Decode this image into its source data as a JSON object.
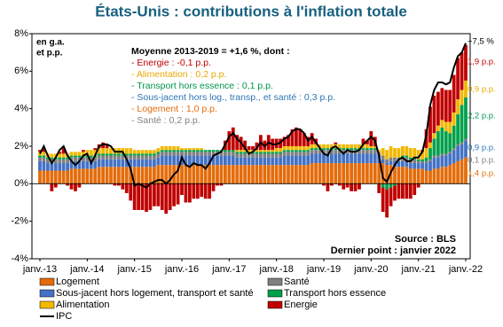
{
  "chart_data": {
    "type": "stacked-bar",
    "title": "États-Unis : contributions à l'inflation totale",
    "unit_note": [
      "en g.a.",
      "et p.p."
    ],
    "average_title": "Moyenne 2013-2019 = +1,6 %, dont :",
    "average_lines": [
      {
        "text": "- Energie : -0,1 p.p.",
        "color": "#c00000"
      },
      {
        "text": "- Alimentation : 0,2 p.p.",
        "color": "#e8a800"
      },
      {
        "text": "- Transport hors essence : 0,1 p.p.",
        "color": "#00964b"
      },
      {
        "text": "- Sous-jacent hors log., transp., et santé : 0,3 p.p.",
        "color": "#2e75b6"
      },
      {
        "text": "- Logement : 1,0 p.p.",
        "color": "#e46c0a"
      },
      {
        "text": "- Santé : 0,2 p.p.",
        "color": "#7f7f7f"
      }
    ],
    "end_labels": [
      {
        "text": "+7,5 %",
        "color": "#000000"
      },
      {
        "text": "1,9 p.p.",
        "color": "#c00000"
      },
      {
        "text": "0,9 p.p.",
        "color": "#e8a800"
      },
      {
        "text": "2,2 p.p.",
        "color": "#00964b"
      },
      {
        "text": "0,9 p.p.",
        "color": "#2e75b6"
      },
      {
        "text": "0,1 p.p.",
        "color": "#7f7f7f"
      },
      {
        "text": "1,4 p.p.",
        "color": "#e46c0a"
      }
    ],
    "source": "Source : BLS",
    "last_point": "Dernier point : janvier 2022",
    "categories": [
      "janv.-13",
      null,
      null,
      null,
      null,
      null,
      null,
      null,
      null,
      null,
      null,
      null,
      "janv.-14",
      null,
      null,
      null,
      null,
      null,
      null,
      null,
      null,
      null,
      null,
      null,
      "janv.-15",
      null,
      null,
      null,
      null,
      null,
      null,
      null,
      null,
      null,
      null,
      null,
      "janv.-16",
      null,
      null,
      null,
      null,
      null,
      null,
      null,
      null,
      null,
      null,
      null,
      "janv.-17",
      null,
      null,
      null,
      null,
      null,
      null,
      null,
      null,
      null,
      null,
      null,
      "janv.-18",
      null,
      null,
      null,
      null,
      null,
      null,
      null,
      null,
      null,
      null,
      null,
      "janv.-19",
      null,
      null,
      null,
      null,
      null,
      null,
      null,
      null,
      null,
      null,
      null,
      "janv.-20",
      null,
      null,
      null,
      null,
      null,
      null,
      null,
      null,
      null,
      null,
      null,
      "janv.-21",
      null,
      null,
      null,
      null,
      null,
      null,
      null,
      null,
      null,
      null,
      null,
      "janv.-22"
    ],
    "ylim": [
      -4,
      8
    ],
    "yticks": [
      {
        "value": -4,
        "label": "-4%"
      },
      {
        "value": -2,
        "label": "-2%"
      },
      {
        "value": 0,
        "label": "0%"
      },
      {
        "value": 2,
        "label": "2%"
      },
      {
        "value": 4,
        "label": "4%"
      },
      {
        "value": 6,
        "label": "6%"
      },
      {
        "value": 8,
        "label": "8%"
      }
    ],
    "series": [
      {
        "name": "Logement",
        "color": "#e46c0a",
        "values": [
          0.7,
          0.7,
          0.7,
          0.7,
          0.7,
          0.7,
          0.7,
          0.7,
          0.8,
          0.8,
          0.8,
          0.8,
          0.8,
          0.8,
          0.8,
          0.9,
          0.9,
          0.9,
          0.9,
          0.9,
          0.9,
          0.9,
          0.9,
          0.9,
          0.9,
          0.9,
          0.9,
          0.9,
          0.9,
          0.9,
          1.0,
          1.0,
          1.0,
          1.0,
          1.0,
          1.0,
          1.0,
          1.0,
          1.0,
          1.0,
          1.0,
          1.0,
          1.0,
          1.0,
          1.0,
          1.0,
          1.0,
          1.0,
          1.0,
          1.0,
          1.0,
          1.0,
          1.0,
          1.0,
          1.0,
          1.0,
          1.0,
          1.0,
          1.0,
          1.0,
          1.0,
          1.0,
          1.0,
          1.0,
          1.0,
          1.0,
          1.0,
          1.0,
          1.0,
          1.1,
          1.1,
          1.1,
          1.1,
          1.1,
          1.1,
          1.1,
          1.1,
          1.1,
          1.1,
          1.1,
          1.1,
          1.1,
          1.1,
          1.1,
          1.1,
          1.1,
          1.1,
          1.1,
          1.0,
          1.0,
          0.9,
          0.9,
          0.9,
          0.9,
          0.8,
          0.8,
          0.8,
          0.8,
          0.7,
          0.7,
          0.8,
          0.8,
          0.9,
          0.9,
          1.0,
          1.1,
          1.2,
          1.3,
          1.4
        ]
      },
      {
        "name": "Sous-jacent hors logement, transport et santé",
        "color": "#4472c4",
        "values": [
          0.5,
          0.5,
          0.4,
          0.4,
          0.4,
          0.4,
          0.4,
          0.4,
          0.4,
          0.4,
          0.4,
          0.4,
          0.4,
          0.4,
          0.4,
          0.4,
          0.4,
          0.4,
          0.4,
          0.4,
          0.4,
          0.4,
          0.4,
          0.4,
          0.4,
          0.4,
          0.4,
          0.4,
          0.4,
          0.4,
          0.4,
          0.5,
          0.5,
          0.5,
          0.5,
          0.5,
          0.5,
          0.5,
          0.5,
          0.5,
          0.5,
          0.5,
          0.5,
          0.5,
          0.5,
          0.5,
          0.5,
          0.5,
          0.5,
          0.5,
          0.4,
          0.4,
          0.4,
          0.4,
          0.4,
          0.4,
          0.4,
          0.4,
          0.4,
          0.4,
          0.4,
          0.4,
          0.5,
          0.5,
          0.5,
          0.5,
          0.5,
          0.5,
          0.5,
          0.5,
          0.5,
          0.5,
          0.5,
          0.5,
          0.5,
          0.5,
          0.5,
          0.5,
          0.5,
          0.5,
          0.5,
          0.5,
          0.5,
          0.5,
          0.5,
          0.5,
          0.4,
          0.2,
          0.1,
          0.2,
          0.3,
          0.3,
          0.3,
          0.3,
          0.3,
          0.3,
          0.3,
          0.3,
          0.4,
          0.5,
          0.6,
          0.6,
          0.6,
          0.6,
          0.6,
          0.7,
          0.8,
          0.8,
          0.9
        ]
      },
      {
        "name": "Santé",
        "color": "#808080",
        "values": [
          0.2,
          0.2,
          0.2,
          0.2,
          0.2,
          0.2,
          0.2,
          0.2,
          0.2,
          0.2,
          0.2,
          0.2,
          0.2,
          0.2,
          0.2,
          0.2,
          0.2,
          0.2,
          0.2,
          0.2,
          0.2,
          0.2,
          0.2,
          0.2,
          0.2,
          0.2,
          0.2,
          0.2,
          0.2,
          0.2,
          0.2,
          0.2,
          0.2,
          0.2,
          0.2,
          0.2,
          0.2,
          0.2,
          0.2,
          0.2,
          0.2,
          0.2,
          0.2,
          0.2,
          0.2,
          0.2,
          0.2,
          0.2,
          0.2,
          0.2,
          0.2,
          0.2,
          0.2,
          0.2,
          0.2,
          0.2,
          0.2,
          0.2,
          0.2,
          0.2,
          0.2,
          0.2,
          0.2,
          0.2,
          0.2,
          0.2,
          0.2,
          0.2,
          0.2,
          0.2,
          0.2,
          0.2,
          0.2,
          0.2,
          0.2,
          0.2,
          0.2,
          0.2,
          0.2,
          0.2,
          0.2,
          0.2,
          0.2,
          0.2,
          0.2,
          0.2,
          0.2,
          0.2,
          0.2,
          0.2,
          0.2,
          0.2,
          0.2,
          0.2,
          0.2,
          0.2,
          0.1,
          0.1,
          0.1,
          0.1,
          0.1,
          0.1,
          0.1,
          0.1,
          0.1,
          0.1,
          0.1,
          0.1,
          0.1
        ]
      },
      {
        "name": "Transport hors essence",
        "color": "#00a04b",
        "values": [
          0.1,
          0.1,
          0.1,
          0.1,
          0.1,
          0.1,
          0.1,
          0.1,
          0.1,
          0.1,
          0.1,
          0.1,
          0.1,
          0.1,
          0.1,
          0.1,
          0.1,
          0.1,
          0.1,
          0.1,
          0.1,
          0.1,
          0.1,
          0.1,
          0.1,
          0.1,
          0.1,
          0.1,
          0.1,
          0.1,
          0.1,
          0.1,
          0.1,
          0.1,
          0.1,
          0.1,
          0.1,
          0.1,
          0.1,
          0.1,
          0.1,
          0.1,
          0.1,
          0.1,
          0.1,
          0.1,
          0.1,
          0.1,
          0.1,
          0.1,
          0.1,
          0.1,
          0.1,
          0.1,
          0.1,
          0.1,
          0.1,
          0.1,
          0.1,
          0.1,
          0.1,
          0.1,
          0.1,
          0.1,
          0.1,
          0.1,
          0.1,
          0.1,
          0.1,
          0.1,
          0.1,
          0.1,
          0.1,
          0.1,
          0.1,
          0.1,
          0.1,
          0.1,
          0.1,
          0.1,
          0.1,
          0.1,
          0.1,
          0.1,
          0.1,
          0.1,
          0.0,
          -0.2,
          -0.3,
          -0.2,
          -0.1,
          0.0,
          0.1,
          0.1,
          0.1,
          0.1,
          0.1,
          0.1,
          0.2,
          0.6,
          0.9,
          1.3,
          1.4,
          1.2,
          1.0,
          1.2,
          1.6,
          2.0,
          2.2
        ]
      },
      {
        "name": "Alimentation",
        "color": "#f2b800",
        "values": [
          0.2,
          0.2,
          0.2,
          0.2,
          0.2,
          0.2,
          0.2,
          0.2,
          0.2,
          0.2,
          0.2,
          0.2,
          0.3,
          0.3,
          0.3,
          0.3,
          0.3,
          0.3,
          0.3,
          0.3,
          0.3,
          0.3,
          0.3,
          0.3,
          0.2,
          0.2,
          0.2,
          0.2,
          0.2,
          0.2,
          0.2,
          0.2,
          0.2,
          0.2,
          0.2,
          0.2,
          0.1,
          0.1,
          0.1,
          0.1,
          0.1,
          0.1,
          0.0,
          0.0,
          0.0,
          0.0,
          0.0,
          0.0,
          0.0,
          0.0,
          0.1,
          0.1,
          0.1,
          0.1,
          0.1,
          0.1,
          0.1,
          0.1,
          0.1,
          0.1,
          0.2,
          0.2,
          0.2,
          0.2,
          0.2,
          0.2,
          0.2,
          0.2,
          0.2,
          0.2,
          0.2,
          0.2,
          0.2,
          0.2,
          0.2,
          0.2,
          0.2,
          0.2,
          0.2,
          0.2,
          0.2,
          0.2,
          0.2,
          0.2,
          0.1,
          0.1,
          0.1,
          0.4,
          0.5,
          0.6,
          0.5,
          0.5,
          0.5,
          0.5,
          0.5,
          0.5,
          0.5,
          0.4,
          0.5,
          0.3,
          0.3,
          0.3,
          0.4,
          0.5,
          0.6,
          0.7,
          0.8,
          0.8,
          0.9
        ]
      },
      {
        "name": "Energie",
        "color": "#c00000",
        "values": [
          0.1,
          0.2,
          0.0,
          -0.4,
          -0.2,
          0.1,
          0.3,
          -0.1,
          -0.3,
          -0.4,
          -0.2,
          0.1,
          0.0,
          0.0,
          0.1,
          0.2,
          0.3,
          0.2,
          0.0,
          -0.1,
          -0.1,
          -0.3,
          -0.5,
          -0.9,
          -1.4,
          -1.4,
          -1.4,
          -1.5,
          -1.4,
          -1.2,
          -1.2,
          -1.4,
          -1.6,
          -1.4,
          -1.2,
          -1.1,
          -0.6,
          -1.0,
          -1.0,
          -0.8,
          -0.8,
          -0.7,
          -0.8,
          -0.8,
          -0.4,
          -0.1,
          -0.1,
          0.5,
          1.0,
          1.2,
          0.8,
          0.7,
          0.5,
          0.2,
          0.2,
          0.4,
          0.8,
          0.5,
          0.8,
          0.6,
          0.5,
          0.5,
          0.5,
          0.6,
          0.9,
          1.0,
          0.9,
          0.7,
          0.5,
          0.6,
          0.3,
          0.0,
          -0.1,
          -0.4,
          -0.1,
          0.1,
          -0.1,
          -0.3,
          -0.2,
          -0.4,
          -0.4,
          -0.3,
          0.3,
          0.2,
          0.8,
          0.5,
          -0.5,
          -1.3,
          -1.5,
          -1.0,
          -0.8,
          -0.8,
          -0.8,
          -0.8,
          -0.8,
          -0.6,
          -0.2,
          0.1,
          1.0,
          1.9,
          2.0,
          1.8,
          1.7,
          1.7,
          1.7,
          2.0,
          2.2,
          2.0,
          1.9
        ]
      }
    ],
    "line": {
      "name": "IPC",
      "color": "#000000",
      "values": [
        1.6,
        2.0,
        1.5,
        1.1,
        1.4,
        1.8,
        2.0,
        1.5,
        1.2,
        1.0,
        1.2,
        1.5,
        1.6,
        1.1,
        1.5,
        2.0,
        2.1,
        2.1,
        2.0,
        1.7,
        1.7,
        1.7,
        1.3,
        0.8,
        -0.1,
        0.0,
        -0.1,
        -0.2,
        0.0,
        0.1,
        0.2,
        0.2,
        0.0,
        0.2,
        0.5,
        0.7,
        1.4,
        1.0,
        0.9,
        1.1,
        1.0,
        1.0,
        0.8,
        1.1,
        1.5,
        1.6,
        1.7,
        2.1,
        2.5,
        2.7,
        2.4,
        2.2,
        1.9,
        1.6,
        1.7,
        1.9,
        2.2,
        2.0,
        2.2,
        2.1,
        2.1,
        2.2,
        2.4,
        2.5,
        2.8,
        2.9,
        2.9,
        2.7,
        2.3,
        2.5,
        2.2,
        1.9,
        1.6,
        1.5,
        1.9,
        2.0,
        1.8,
        1.6,
        1.8,
        1.7,
        1.7,
        1.8,
        2.1,
        2.3,
        2.5,
        2.3,
        1.5,
        0.3,
        0.1,
        0.6,
        1.0,
        1.3,
        1.4,
        1.2,
        1.2,
        1.4,
        1.4,
        1.7,
        2.6,
        4.2,
        5.0,
        5.4,
        5.4,
        5.3,
        5.4,
        6.2,
        6.8,
        7.0,
        7.5
      ]
    }
  }
}
